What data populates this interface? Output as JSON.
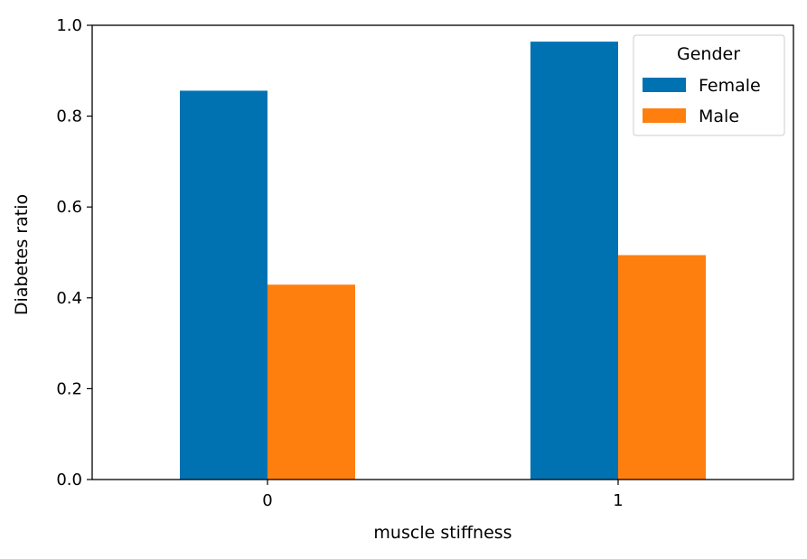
{
  "chart_data": {
    "type": "bar",
    "categories": [
      "0",
      "1"
    ],
    "series": [
      {
        "name": "Female",
        "values": [
          0.856,
          0.964
        ],
        "color": "#0072b2"
      },
      {
        "name": "Male",
        "values": [
          0.429,
          0.494
        ],
        "color": "#ff7f0e"
      }
    ],
    "xlabel": "muscle stiffness",
    "ylabel": "Diabetes ratio",
    "ylim": [
      0,
      1.0
    ],
    "yticks": [
      "0.0",
      "0.2",
      "0.4",
      "0.6",
      "0.8",
      "1.0"
    ],
    "legend": {
      "title": "Gender",
      "placement": "top-right"
    },
    "grid": false
  }
}
